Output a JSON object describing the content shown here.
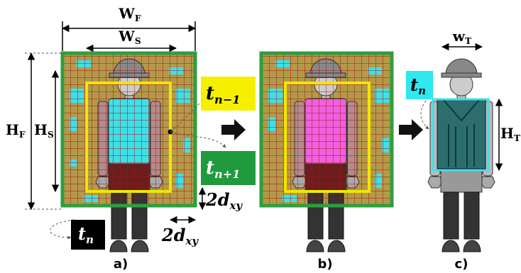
{
  "panel_a": {
    "width_frame": {
      "main": "W",
      "sub": "F"
    },
    "width_search": {
      "main": "W",
      "sub": "S"
    },
    "height_frame": {
      "main": "H",
      "sub": "F"
    },
    "height_search": {
      "main": "H",
      "sub": "S"
    },
    "offset_y": {
      "main": "2d",
      "sub": "xy"
    },
    "offset_x": {
      "main": "2d",
      "sub": "xy"
    },
    "current_frame": {
      "main": "t",
      "sub": "n"
    },
    "label": "a)"
  },
  "frames": {
    "previous": {
      "main": "t",
      "sub": "n−1"
    },
    "next": {
      "main": "t",
      "sub": "n+1"
    }
  },
  "panel_b": {
    "label": "b)"
  },
  "panel_c": {
    "width_target": {
      "main": "w",
      "sub": "T"
    },
    "height_target": {
      "main": "H",
      "sub": "T"
    },
    "current_frame": {
      "main": "t",
      "sub": "n"
    },
    "label": "c)"
  }
}
